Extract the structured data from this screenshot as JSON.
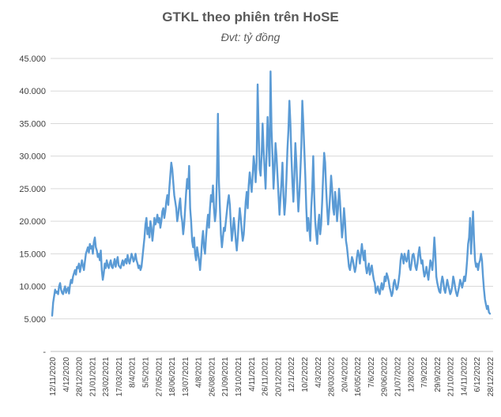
{
  "chart_data": {
    "type": "line",
    "title": "GTKL theo phiên trên HoSE",
    "subtitle": "Đvt: tỷ đồng",
    "xlabel": "",
    "ylabel": "",
    "ylim": [
      0,
      45000
    ],
    "y_ticks": [
      0,
      5000,
      10000,
      15000,
      20000,
      25000,
      30000,
      35000,
      40000,
      45000
    ],
    "y_tick_labels": [
      "-",
      "5.000",
      "10.000",
      "15.000",
      "20.000",
      "25.000",
      "30.000",
      "35.000",
      "40.000",
      "45.000"
    ],
    "grid": true,
    "legend": "none",
    "x_tick_labels": [
      "12/11/2020",
      "4/12/2020",
      "28/12/2020",
      "21/01/2021",
      "23/02/2021",
      "17/03/2021",
      "8/4/2021",
      "5/5/2021",
      "27/05/2021",
      "18/06/2021",
      "13/07/2021",
      "4/8/2021",
      "26/08/2021",
      "21/09/2021",
      "13/10/2021",
      "4/11/2021",
      "26/11/2021",
      "20/12/2021",
      "12/1/2022",
      "10/2/2022",
      "4/3/2022",
      "28/03/2022",
      "20/4/2022",
      "16/05/2022",
      "7/6/2022",
      "29/06/2022",
      "21/07/2022",
      "12/8/2022",
      "7/9/2022",
      "29/9/2022",
      "21/10/2022",
      "14/11/2022",
      "6/12/2022",
      "28/12/2022"
    ],
    "series": [
      {
        "color": "#5b9bd5",
        "values": [
          5500,
          7500,
          8500,
          9500,
          9000,
          9200,
          8800,
          10000,
          10500,
          9500,
          9000,
          8800,
          9500,
          10000,
          9000,
          9500,
          9800,
          8900,
          10200,
          11000,
          10500,
          11500,
          12000,
          12500,
          11800,
          13000,
          12800,
          13500,
          12200,
          13000,
          14000,
          13200,
          12500,
          13800,
          15000,
          15500,
          16000,
          15200,
          16500,
          15800,
          16200,
          15000,
          16800,
          17500,
          16000,
          15500,
          14500,
          15000,
          14000,
          15500,
          12500,
          11000,
          12000,
          13500,
          12800,
          14000,
          13200,
          12800,
          13500,
          14000,
          13000,
          12800,
          13500,
          14200,
          13000,
          13800,
          14500,
          13200,
          13000,
          12800,
          13500,
          14000,
          13200,
          13800,
          14200,
          13500,
          14800,
          14000,
          13500,
          14200,
          15000,
          14500,
          13800,
          14200,
          15000,
          14000,
          13500,
          12800,
          13200,
          12500,
          13000,
          14500,
          16000,
          17500,
          19500,
          20500,
          18000,
          19000,
          17500,
          20000,
          19000,
          17000,
          18500,
          20500,
          19500,
          20000,
          21000,
          19800,
          20500,
          19000,
          20000,
          21500,
          22000,
          20500,
          21500,
          23000,
          24000,
          22500,
          25000,
          27000,
          29000,
          28000,
          26000,
          24000,
          23000,
          22000,
          20000,
          21000,
          22500,
          23500,
          21000,
          20000,
          18000,
          19500,
          22000,
          24500,
          26500,
          25000,
          28500,
          22000,
          20000,
          17000,
          16000,
          17500,
          15000,
          14000,
          16000,
          15000,
          14000,
          12500,
          14500,
          17000,
          18500,
          16000,
          15000,
          17500,
          19500,
          21000,
          19000,
          22000,
          24000,
          23000,
          25500,
          22000,
          20000,
          21500,
          27000,
          36500,
          26000,
          22000,
          18000,
          16000,
          17500,
          19000,
          18500,
          20000,
          21500,
          23000,
          24000,
          22500,
          19500,
          17000,
          18500,
          20500,
          19000,
          17000,
          15500,
          17500,
          20000,
          22000,
          20500,
          18500,
          17000,
          18000,
          20500,
          23000,
          24500,
          22000,
          25500,
          27500,
          26000,
          24500,
          27000,
          30000,
          28500,
          26000,
          29000,
          41000,
          34000,
          28000,
          27000,
          30000,
          35000,
          31000,
          28000,
          25000,
          30500,
          36000,
          32000,
          28500,
          43000,
          34000,
          30000,
          25000,
          28000,
          32000,
          30000,
          27000,
          24000,
          21000,
          23500,
          26000,
          29000,
          24000,
          21000,
          23000,
          26500,
          31000,
          34000,
          38500,
          35000,
          30000,
          26000,
          23000,
          27000,
          32000,
          29000,
          25000,
          21500,
          24000,
          27500,
          31500,
          38500,
          35000,
          31000,
          27000,
          22000,
          18500,
          20500,
          19000,
          17000,
          22000,
          25000,
          30000,
          24000,
          20000,
          18000,
          16500,
          19500,
          21000,
          18000,
          19500,
          23000,
          27000,
          30500,
          29000,
          25000,
          22000,
          19500,
          21500,
          24000,
          27000,
          25000,
          22000,
          21000,
          24500,
          23000,
          20000,
          22000,
          25000,
          23000,
          20000,
          17500,
          19000,
          22000,
          20000,
          17000,
          16000,
          14500,
          13000,
          12500,
          13500,
          14500,
          14000,
          13000,
          12200,
          13000,
          14500,
          15500,
          14800,
          13500,
          15000,
          16500,
          15000,
          14000,
          15500,
          13000,
          12000,
          12800,
          13500,
          11800,
          12500,
          13200,
          12000,
          11000,
          10500,
          9000,
          9500,
          10000,
          9200,
          8800,
          9800,
          10500,
          9500,
          10000,
          11500,
          10800,
          12000,
          11500,
          10800,
          9800,
          9200,
          8500,
          9000,
          10500,
          11000,
          10200,
          9500,
          9800,
          10800,
          12000,
          14000,
          15000,
          14500,
          13500,
          15000,
          14200,
          13800,
          14500,
          15500,
          13000,
          12500,
          13500,
          14800,
          15000,
          14200,
          13000,
          12500,
          13500,
          15000,
          16000,
          14500,
          13500,
          14000,
          12500,
          11500,
          12000,
          13000,
          12000,
          11000,
          12500,
          14000,
          13500,
          12500,
          14500,
          17500,
          15000,
          11500,
          10500,
          9800,
          9200,
          9000,
          10500,
          11500,
          10800,
          9500,
          9000,
          10000,
          11000,
          10200,
          9500,
          8800,
          9200,
          10000,
          11500,
          10800,
          9800,
          9000,
          8500,
          9200,
          10000,
          11000,
          10500,
          9800,
          10500,
          11500,
          10800,
          12000,
          14000,
          16500,
          17500,
          20500,
          15000,
          18500,
          21500,
          17000,
          14000,
          13000,
          13500,
          12500,
          13500,
          14000,
          15000,
          14000,
          11500,
          9500,
          8000,
          7200,
          6500,
          7000,
          6000,
          5800
        ]
      }
    ]
  }
}
